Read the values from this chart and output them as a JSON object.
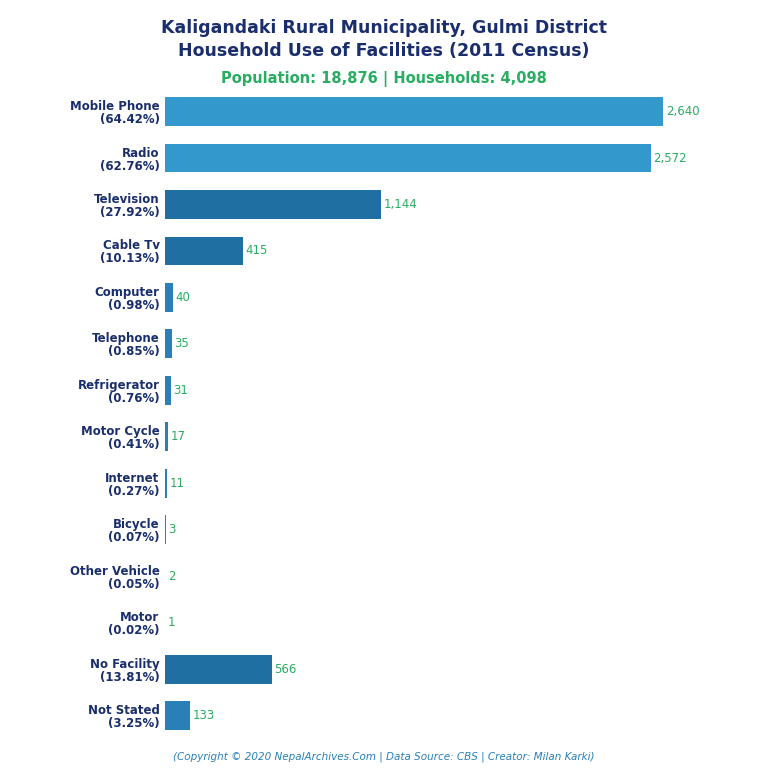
{
  "title_line1": "Kaligandaki Rural Municipality, Gulmi District",
  "title_line2": "Household Use of Facilities (2011 Census)",
  "subtitle": "Population: 18,876 | Households: 4,098",
  "footer": "(Copyright © 2020 NepalArchives.Com | Data Source: CBS | Creator: Milan Karki)",
  "categories": [
    "Not Stated\n(3.25%)",
    "No Facility\n(13.81%)",
    "Motor\n(0.02%)",
    "Other Vehicle\n(0.05%)",
    "Bicycle\n(0.07%)",
    "Internet\n(0.27%)",
    "Motor Cycle\n(0.41%)",
    "Refrigerator\n(0.76%)",
    "Telephone\n(0.85%)",
    "Computer\n(0.98%)",
    "Cable Tv\n(10.13%)",
    "Television\n(27.92%)",
    "Radio\n(62.76%)",
    "Mobile Phone\n(64.42%)"
  ],
  "values": [
    133,
    566,
    1,
    2,
    3,
    11,
    17,
    31,
    35,
    40,
    415,
    1144,
    2572,
    2640
  ],
  "bar_colors": [
    "#2980b9",
    "#1f6fa3",
    "#2980b9",
    "#2980b9",
    "#2980b9",
    "#2980b9",
    "#2980b9",
    "#2980b9",
    "#2980b9",
    "#2980b9",
    "#1f6fa3",
    "#1f6fa3",
    "#3399cc",
    "#3399cc"
  ],
  "title_color": "#1a2e6e",
  "subtitle_color": "#27ae60",
  "footer_color": "#2980b9",
  "label_color": "#27ae60",
  "ylabel_color": "#1a2e6e",
  "background_color": "#ffffff",
  "xlim": [
    0,
    2950
  ]
}
